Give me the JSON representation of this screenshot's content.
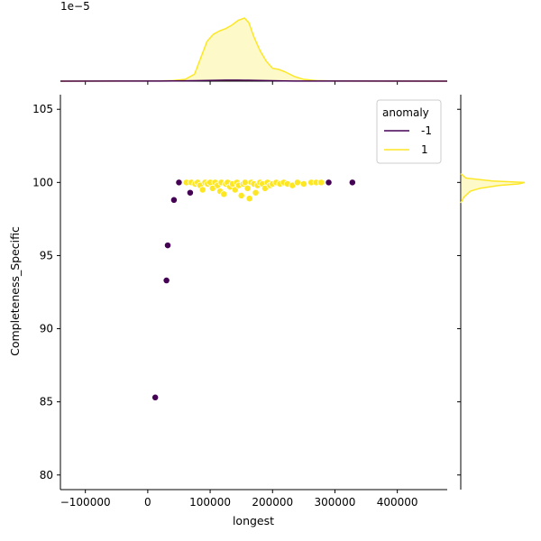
{
  "chart_data": {
    "type": "scatter",
    "subtype": "jointplot",
    "xlabel": "longest",
    "ylabel": "Completeness_Specific",
    "xlim": [
      -140000,
      480000
    ],
    "ylim": [
      79,
      106
    ],
    "x_ticks": [
      -100000,
      0,
      100000,
      200000,
      300000,
      400000
    ],
    "x_tick_labels": [
      "−100000",
      "0",
      "100000",
      "200000",
      "300000",
      "400000"
    ],
    "y_ticks": [
      80,
      85,
      90,
      95,
      100,
      105
    ],
    "y_tick_labels": [
      "80",
      "85",
      "90",
      "95",
      "100",
      "105"
    ],
    "top_marginal_offset_label": "1e−5",
    "legend": {
      "title": "anomaly",
      "placement": "upper right",
      "entries": [
        {
          "label": "-1",
          "color": "#440154"
        },
        {
          "label": "1",
          "color": "#fde725"
        }
      ]
    },
    "series": [
      {
        "name": "-1",
        "color": "#440154",
        "points": [
          {
            "x": 12000,
            "y": 85.3
          },
          {
            "x": 30000,
            "y": 93.3
          },
          {
            "x": 32000,
            "y": 95.7
          },
          {
            "x": 42000,
            "y": 98.8
          },
          {
            "x": 50000,
            "y": 100.0
          },
          {
            "x": 68000,
            "y": 99.3
          },
          {
            "x": 290000,
            "y": 100.0
          },
          {
            "x": 328000,
            "y": 100.0
          }
        ]
      },
      {
        "name": "1",
        "color": "#fde725",
        "points": [
          {
            "x": 62000,
            "y": 100.0
          },
          {
            "x": 70000,
            "y": 100.0
          },
          {
            "x": 76000,
            "y": 99.9
          },
          {
            "x": 80000,
            "y": 100.0
          },
          {
            "x": 84000,
            "y": 99.8
          },
          {
            "x": 88000,
            "y": 99.5
          },
          {
            "x": 92000,
            "y": 100.0
          },
          {
            "x": 96000,
            "y": 99.9
          },
          {
            "x": 100000,
            "y": 100.0
          },
          {
            "x": 104000,
            "y": 99.6
          },
          {
            "x": 108000,
            "y": 100.0
          },
          {
            "x": 112000,
            "y": 99.8
          },
          {
            "x": 116000,
            "y": 99.4
          },
          {
            "x": 118000,
            "y": 100.0
          },
          {
            "x": 122000,
            "y": 99.2
          },
          {
            "x": 125000,
            "y": 99.9
          },
          {
            "x": 128000,
            "y": 100.0
          },
          {
            "x": 132000,
            "y": 99.7
          },
          {
            "x": 136000,
            "y": 99.9
          },
          {
            "x": 140000,
            "y": 99.5
          },
          {
            "x": 143000,
            "y": 100.0
          },
          {
            "x": 146000,
            "y": 99.8
          },
          {
            "x": 150000,
            "y": 99.1
          },
          {
            "x": 153000,
            "y": 99.9
          },
          {
            "x": 156000,
            "y": 100.0
          },
          {
            "x": 160000,
            "y": 99.6
          },
          {
            "x": 163000,
            "y": 98.9
          },
          {
            "x": 166000,
            "y": 100.0
          },
          {
            "x": 170000,
            "y": 99.9
          },
          {
            "x": 173000,
            "y": 99.3
          },
          {
            "x": 176000,
            "y": 99.8
          },
          {
            "x": 180000,
            "y": 100.0
          },
          {
            "x": 184000,
            "y": 99.9
          },
          {
            "x": 188000,
            "y": 99.6
          },
          {
            "x": 192000,
            "y": 100.0
          },
          {
            "x": 196000,
            "y": 99.8
          },
          {
            "x": 200000,
            "y": 99.9
          },
          {
            "x": 206000,
            "y": 100.0
          },
          {
            "x": 212000,
            "y": 99.9
          },
          {
            "x": 218000,
            "y": 100.0
          },
          {
            "x": 224000,
            "y": 99.9
          },
          {
            "x": 232000,
            "y": 99.8
          },
          {
            "x": 240000,
            "y": 100.0
          },
          {
            "x": 250000,
            "y": 99.9
          },
          {
            "x": 262000,
            "y": 100.0
          },
          {
            "x": 270000,
            "y": 100.0
          },
          {
            "x": 278000,
            "y": 100.0
          }
        ]
      }
    ],
    "x_marginal": {
      "x": [
        -140000,
        20000,
        40000,
        60000,
        75000,
        85000,
        95000,
        105000,
        115000,
        125000,
        135000,
        145000,
        155000,
        162000,
        170000,
        180000,
        190000,
        200000,
        210000,
        220000,
        235000,
        250000,
        270000,
        300000,
        480000
      ],
      "density_class_1": [
        0,
        0.02,
        0.05,
        0.15,
        0.6,
        2.0,
        3.4,
        4.0,
        4.3,
        4.5,
        4.8,
        5.2,
        5.4,
        5.0,
        3.8,
        2.6,
        1.7,
        1.1,
        1.0,
        0.8,
        0.4,
        0.15,
        0.05,
        0.01,
        0
      ],
      "density_class_neg1": [
        0,
        0.01,
        0.02,
        0.03,
        0.04,
        0.05,
        0.06,
        0.07,
        0.08,
        0.09,
        0.09,
        0.09,
        0.08,
        0.08,
        0.07,
        0.06,
        0.05,
        0.04,
        0.03,
        0.02,
        0.01,
        0.01,
        0.01,
        0.01,
        0
      ]
    },
    "y_marginal": {
      "y": [
        98.6,
        99.0,
        99.4,
        99.6,
        99.8,
        99.9,
        100.0,
        100.1,
        100.3,
        100.6
      ],
      "density_class_1": [
        0,
        0.05,
        0.15,
        0.3,
        0.6,
        0.9,
        1.0,
        0.5,
        0.08,
        0
      ]
    }
  }
}
